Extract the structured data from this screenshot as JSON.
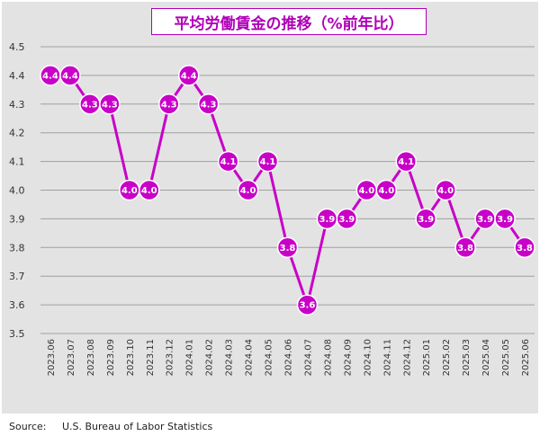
{
  "colors": {
    "accent": "#c800c8",
    "title": "#b000b8",
    "background": "#e3e3e3",
    "grid": "#a0a0a0",
    "axis_text": "#333333"
  },
  "source": {
    "label": "Source:",
    "text": "U.S. Bureau of Labor Statistics"
  },
  "chart_data": {
    "type": "line",
    "title": "平均労働賃金の推移（%前年比）",
    "xlabel": "",
    "ylabel": "",
    "ylim": [
      3.5,
      4.5
    ],
    "yticks": [
      "3.5",
      "3.6",
      "3.7",
      "3.8",
      "3.9",
      "4.0",
      "4.1",
      "4.2",
      "4.3",
      "4.4",
      "4.5"
    ],
    "grid": true,
    "legend": "none",
    "categories": [
      "2023.06",
      "2023.07",
      "2023.08",
      "2023.09",
      "2023.10",
      "2023.11",
      "2023.12",
      "2024.01",
      "2024.02",
      "2024.03",
      "2024.04",
      "2024.05",
      "2024.06",
      "2024.07",
      "2024.08",
      "2024.09",
      "2024.10",
      "2024.11",
      "2024.12",
      "2025.01",
      "2025.02",
      "2025.03",
      "2025.04",
      "2025.05",
      "2025.06"
    ],
    "values": [
      4.4,
      4.4,
      4.3,
      4.3,
      4.0,
      4.0,
      4.3,
      4.4,
      4.3,
      4.1,
      4.0,
      4.1,
      3.8,
      3.6,
      3.9,
      3.9,
      4.0,
      4.0,
      4.1,
      3.9,
      4.0,
      3.8,
      3.9,
      3.9,
      3.8
    ],
    "point_labels": [
      "4.4",
      "4.4",
      "4.3",
      "4.3",
      "4.0",
      "4.0",
      "4.3",
      "4.4",
      "4.3",
      "4.1",
      "4.0",
      "4.1",
      "3.8",
      "3.6",
      "3.9",
      "3.9",
      "4.0",
      "4.0",
      "4.1",
      "3.9",
      "4.0",
      "3.8",
      "3.9",
      "3.9",
      "3.8"
    ]
  }
}
